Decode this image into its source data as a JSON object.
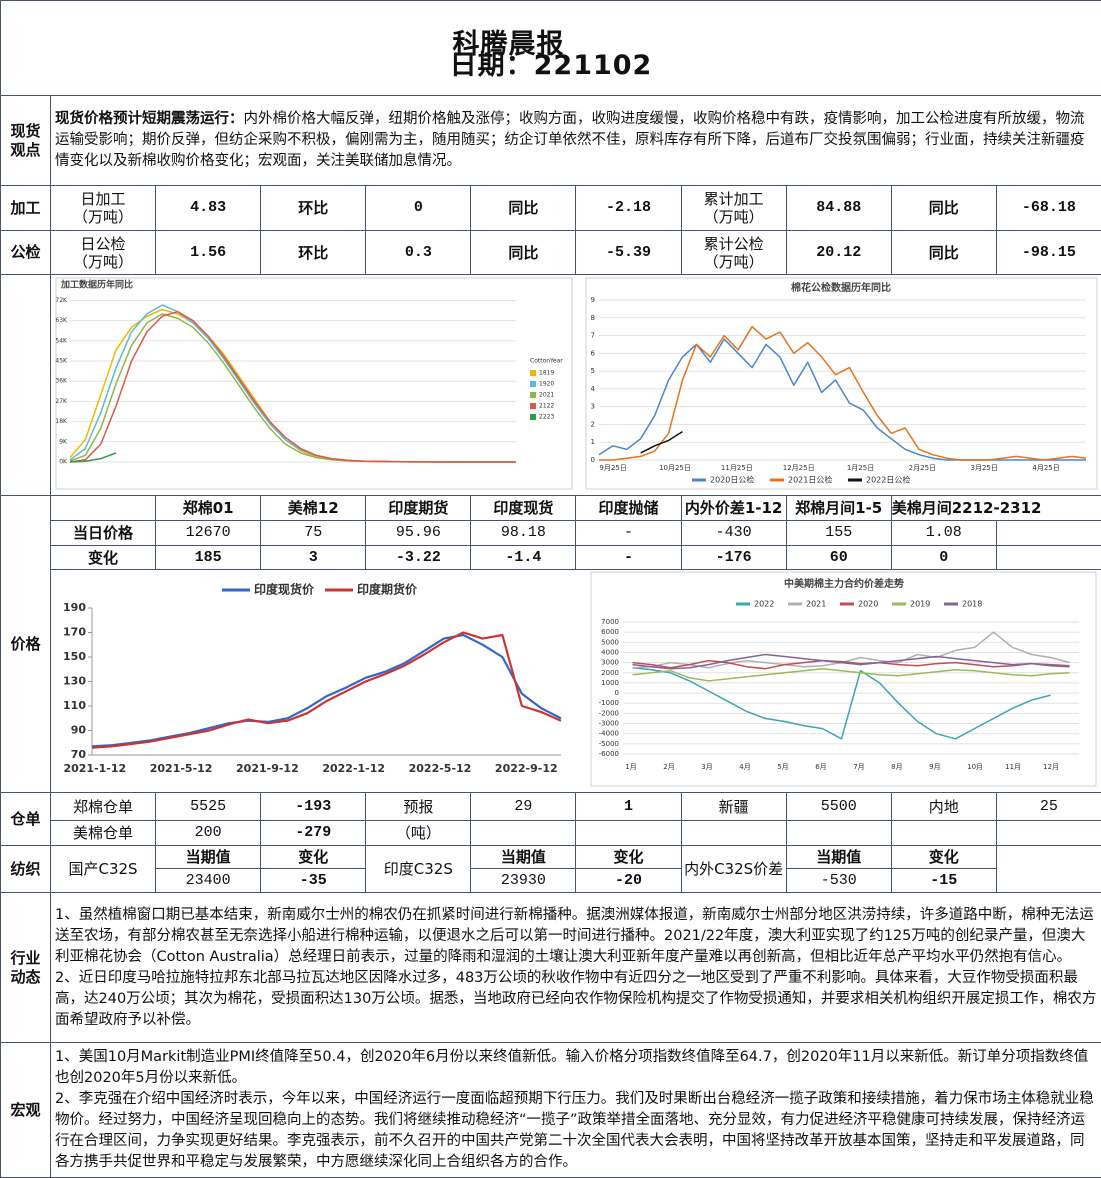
{
  "header": {
    "title": "科腾晨报",
    "date": "日期：221102"
  },
  "viewpoint": {
    "label": "现货观点",
    "lead": "现货价格预计短期震荡运行：",
    "text": "内外棉价格大幅反弹，纽期价格触及涨停；收购方面，收购进度缓慢，收购价格稳中有跌，疫情影响，加工公检进度有所放缓，物流运输受影响；期价反弹，但纺企采购不积极，偏刚需为主，随用随买；纺企订单依然不佳，原料库存有所下降，后道布厂交投氛围偏弱；行业面，持续关注新疆疫情变化以及新棉收购价格变化；宏观面，关注美联储加息情况。"
  },
  "processing": {
    "label": "加工",
    "cells": [
      "日加工\n（万吨）",
      4.83,
      "环比",
      0,
      "同比",
      -2.18,
      "累计加工\n（万吨）",
      84.88,
      "同比",
      -68.18
    ]
  },
  "inspection": {
    "label": "公检",
    "cells": [
      "日公检\n（万吨）",
      1.56,
      "环比",
      0.3,
      "同比",
      -5.39,
      "累计公检\n（万吨）",
      20.12,
      "同比",
      -98.15
    ]
  },
  "prices": {
    "label": "价格",
    "headers": [
      "郑棉01",
      "美棉12",
      "印度期货",
      "印度现货",
      "印度抛储",
      "内外价差1-12",
      "郑棉月间1-5",
      "美棉月间2212-2312"
    ],
    "rows": [
      {
        "label": "当日价格",
        "values": [
          12670,
          75,
          95.96,
          98.18,
          "-",
          -430,
          155,
          1.08
        ]
      },
      {
        "label": "变化",
        "values": [
          185,
          3,
          -3.22,
          -1.4,
          "-",
          -176,
          60,
          0
        ]
      }
    ]
  },
  "warehouse": {
    "label": "仓单",
    "rows": [
      [
        "郑棉仓单",
        5525,
        -193,
        "预报",
        29,
        1,
        "新疆",
        5500,
        "内地",
        25
      ],
      [
        "美棉仓单",
        200,
        -279,
        "（吨）"
      ]
    ]
  },
  "textile": {
    "label": "纺织",
    "groups": [
      {
        "name": "国产C32S",
        "headers": [
          "当期值",
          "变化"
        ],
        "values": [
          23400,
          -35
        ]
      },
      {
        "name": "印度C32S",
        "headers": [
          "当期值",
          "变化"
        ],
        "values": [
          23930,
          -20
        ]
      },
      {
        "name": "内外C32S价差",
        "headers": [
          "当期值",
          "变化"
        ],
        "values": [
          -530,
          -15
        ]
      }
    ]
  },
  "industry": {
    "label": "行业动态",
    "paragraphs": [
      "1、虽然植棉窗口期已基本结束，新南威尔士州的棉农仍在抓紧时间进行新棉播种。据澳洲媒体报道，新南威尔士州部分地区洪涝持续，许多道路中断，棉种无法运送至农场，有部分棉农甚至无奈选择小船进行棉种运输，以便退水之后可以第一时间进行播种。2021/22年度，澳大利亚实现了约125万吨的创纪录产量，但澳大利亚棉花协会（Cotton Australia）总经理日前表示，过量的降雨和湿润的土壤让澳大利亚新年度产量难以再创新高，但相比近年总产平均水平仍然抱有信心。",
      "2、近日印度马哈拉施特拉邦东北部马拉瓦达地区因降水过多，483万公顷的秋收作物中有近四分之一地区受到了严重不利影响。具体来看，大豆作物受损面积最高，达240万公顷；其次为棉花，受损面积达130万公顷。据悉，当地政府已经向农作物保险机构提交了作物受损通知，并要求相关机构组织开展定损工作，棉农方面希望政府予以补偿。"
    ]
  },
  "macro": {
    "label": "宏观",
    "paragraphs": [
      "1、美国10月Markit制造业PMI终值降至50.4，创2020年6月份以来终值新低。输入价格分项指数终值降至64.7，创2020年11月以来新低。新订单分项指数终值也创2020年5月份以来新低。",
      "2、李克强在介绍中国经济时表示，今年以来，中国经济运行一度面临超预期下行压力。我们及时果断出台稳经济一揽子政策和接续措施，着力保市场主体稳就业稳物价。经过努力，中国经济呈现回稳向上的态势。我们将继续推动稳经济“一揽子”政策举措全面落地、充分显效，有力促进经济平稳健康可持续发展，保持经济运行在合理区间，力争实现更好结果。李克强表示，前不久召开的中国共产党第二十次全国代表大会表明，中国将坚持改革开放基本国策，坚持走和平发展道路，同各方携手共促世界和平稳定与发展繁荣，中方愿继续深化同上合组织各方的合作。"
    ]
  },
  "chart_data": [
    {
      "type": "line",
      "title": "加工数据历年同比",
      "legend_title": "CottonYear",
      "legend": "right",
      "grid": true,
      "ylim": [
        0,
        74000
      ],
      "yticks": [
        {
          "value": 0,
          "label": "0K"
        },
        {
          "value": 9000,
          "label": "9K"
        },
        {
          "value": 18000,
          "label": "18K"
        },
        {
          "value": 27000,
          "label": "27K"
        },
        {
          "value": 36000,
          "label": "36K"
        },
        {
          "value": 45000,
          "label": "45K"
        },
        {
          "value": 54000,
          "label": "54K"
        },
        {
          "value": 63000,
          "label": "63K"
        },
        {
          "value": 72000,
          "label": "72K"
        }
      ],
      "series": [
        {
          "name": "1819",
          "color": "#f2b705",
          "values": [
            2000,
            10000,
            30000,
            50000,
            60000,
            65000,
            68000,
            66000,
            62000,
            56000,
            48000,
            38000,
            28000,
            18000,
            10000,
            5000,
            2500,
            1200,
            600,
            300,
            200,
            100,
            100,
            0,
            0,
            0,
            0,
            0,
            0,
            0
          ]
        },
        {
          "name": "1920",
          "color": "#5bb8e0",
          "values": [
            1000,
            6000,
            22000,
            42000,
            58000,
            66000,
            70000,
            67000,
            62000,
            55000,
            46000,
            36000,
            26000,
            17000,
            10000,
            5500,
            3000,
            1500,
            800,
            400,
            300,
            200,
            100,
            100,
            100,
            0,
            0,
            0,
            0,
            0
          ]
        },
        {
          "name": "2021",
          "color": "#8cb84a",
          "values": [
            500,
            3000,
            15000,
            35000,
            52000,
            62000,
            66000,
            64000,
            60000,
            53000,
            44000,
            34000,
            24000,
            15000,
            8000,
            4000,
            2000,
            1000,
            500,
            300,
            200,
            100,
            0,
            0,
            0,
            0,
            0,
            0,
            0,
            0
          ]
        },
        {
          "name": "2122",
          "color": "#e0574a",
          "values": [
            0,
            1000,
            8000,
            25000,
            45000,
            58000,
            65000,
            67000,
            63000,
            56000,
            47000,
            37000,
            27000,
            18000,
            11000,
            6000,
            3000,
            1500,
            800,
            400,
            300,
            200,
            100,
            100,
            0,
            0,
            0,
            0,
            0,
            0
          ]
        },
        {
          "name": "2223",
          "color": "#2e9e44",
          "values": [
            0,
            300,
            1500,
            4000,
            null,
            null,
            null,
            null,
            null,
            null,
            null,
            null,
            null,
            null,
            null,
            null,
            null,
            null,
            null,
            null,
            null,
            null,
            null,
            null,
            null,
            null,
            null,
            null,
            null,
            null
          ]
        }
      ]
    },
    {
      "type": "line",
      "title": "棉花公检数据历年同比",
      "legend": "bottom",
      "grid": true,
      "ylim": [
        0,
        9
      ],
      "yticks": [
        0,
        1,
        2,
        3,
        4,
        5,
        6,
        7,
        8,
        9
      ],
      "xticks": [
        "9月25日",
        "10月25日",
        "11月25日",
        "12月25日",
        "1月25日",
        "2月25日",
        "3月25日",
        "4月25日"
      ],
      "series": [
        {
          "name": "2020日公检",
          "color": "#4a86c8",
          "values": [
            0.3,
            0.8,
            0.6,
            1.2,
            2.5,
            4.5,
            5.8,
            6.5,
            5.5,
            6.8,
            6,
            5.2,
            6.5,
            5.8,
            4.2,
            5.5,
            3.8,
            4.5,
            3.2,
            2.8,
            1.8,
            1.2,
            0.6,
            0.3,
            0.1,
            0,
            0,
            0,
            0,
            0,
            0,
            0,
            0,
            0,
            0,
            0
          ]
        },
        {
          "name": "2021日公检",
          "color": "#e8711c",
          "values": [
            0,
            0,
            0.1,
            0.2,
            0.5,
            1.5,
            4.5,
            6.5,
            5.8,
            7,
            6.2,
            7.5,
            6.8,
            7.2,
            6,
            6.6,
            5.8,
            4.8,
            5.2,
            3.8,
            2.5,
            1.5,
            1.8,
            0.6,
            0.3,
            0.1,
            0,
            0,
            0,
            0.1,
            0.2,
            0.1,
            0,
            0.1,
            0.2,
            0.1
          ]
        },
        {
          "name": "2022日公检",
          "color": "#111111",
          "values": [
            null,
            null,
            null,
            0.4,
            0.8,
            1.1,
            1.6,
            null,
            null,
            null,
            null,
            null,
            null,
            null,
            null,
            null,
            null,
            null,
            null,
            null,
            null,
            null,
            null,
            null,
            null,
            null,
            null,
            null,
            null,
            null,
            null,
            null,
            null,
            null,
            null,
            null
          ]
        }
      ]
    },
    {
      "type": "line",
      "legend": "top",
      "grid": false,
      "ylim": [
        70,
        190
      ],
      "yticks": [
        70,
        90,
        110,
        130,
        150,
        170,
        190
      ],
      "xticks": [
        "2021-1-12",
        "2021-5-12",
        "2021-9-12",
        "2022-1-12",
        "2022-5-12",
        "2022-9-12"
      ],
      "series": [
        {
          "name": "印度现货价",
          "color": "#3366cc",
          "values": [
            77,
            78,
            80,
            82,
            85,
            88,
            92,
            96,
            98,
            97,
            100,
            108,
            118,
            125,
            133,
            138,
            145,
            155,
            165,
            168,
            160,
            150,
            120,
            108,
            100
          ]
        },
        {
          "name": "印度期货价",
          "color": "#cc3333",
          "values": [
            76,
            77,
            79,
            81,
            84,
            87,
            90,
            95,
            99,
            96,
            98,
            104,
            114,
            122,
            130,
            136,
            143,
            152,
            162,
            170,
            165,
            168,
            110,
            105,
            98
          ]
        }
      ]
    },
    {
      "type": "line",
      "title": "中美期棉主力合约价差走势",
      "legend": "top",
      "grid": true,
      "ylim": [
        -6000,
        7000
      ],
      "yticks": [
        7000,
        6000,
        5000,
        4000,
        3000,
        2000,
        1000,
        0,
        -1000,
        -2000,
        -3000,
        -4000,
        -5000,
        -6000
      ],
      "xticks": [
        "1月",
        "2月",
        "3月",
        "4月",
        "5月",
        "6月",
        "7月",
        "8月",
        "9月",
        "10月",
        "11月",
        "12月"
      ],
      "series": [
        {
          "name": "2022",
          "color": "#3aa6b0",
          "values": [
            2500,
            2300,
            2000,
            1200,
            200,
            -800,
            -1800,
            -2500,
            -2800,
            -3200,
            -3500,
            -4500,
            2200,
            1000,
            -1000,
            -2800,
            -4000,
            -4500,
            -3500,
            -2500,
            -1500,
            -700,
            -200,
            null
          ]
        },
        {
          "name": "2021",
          "color": "#b0b0b0",
          "values": [
            2500,
            2600,
            3000,
            2800,
            2500,
            2900,
            3200,
            3000,
            2800,
            2600,
            2700,
            3000,
            3500,
            3200,
            3000,
            3800,
            3500,
            4200,
            4500,
            6000,
            4500,
            3800,
            3500,
            3000
          ]
        },
        {
          "name": "2020",
          "color": "#c0504d",
          "values": [
            3000,
            2800,
            2500,
            2800,
            3200,
            3000,
            2600,
            2400,
            2800,
            3000,
            3200,
            3100,
            2900,
            3000,
            2800,
            2700,
            2900,
            3000,
            2800,
            2600,
            2700,
            2900,
            2800,
            2700
          ]
        },
        {
          "name": "2019",
          "color": "#9bbb59",
          "values": [
            1800,
            2000,
            2200,
            1500,
            1200,
            1400,
            1600,
            1800,
            2000,
            2200,
            2400,
            2200,
            2000,
            1800,
            1700,
            1900,
            2100,
            2300,
            2200,
            2000,
            1800,
            1700,
            1900,
            2000
          ]
        },
        {
          "name": "2018",
          "color": "#8064a2",
          "values": [
            2800,
            2600,
            2400,
            2500,
            2800,
            3200,
            3500,
            3800,
            3600,
            3400,
            3200,
            3000,
            2800,
            3000,
            3200,
            3400,
            3600,
            3400,
            3200,
            3000,
            2800,
            2900,
            2700,
            2600
          ]
        }
      ]
    }
  ]
}
